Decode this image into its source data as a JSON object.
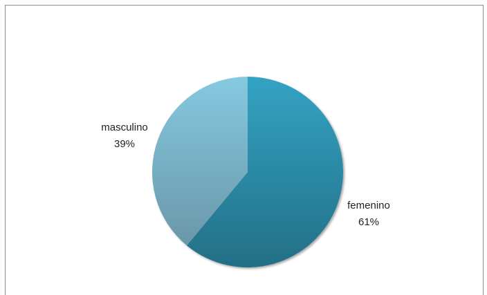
{
  "chart_data": {
    "type": "pie",
    "slices": [
      {
        "label": "femenino",
        "percent_label": "61%",
        "value": 61,
        "color": "#2b93ad"
      },
      {
        "label": "masculino",
        "percent_label": "39%",
        "value": 39,
        "color": "#7fbdd4"
      }
    ],
    "legend": "none"
  }
}
